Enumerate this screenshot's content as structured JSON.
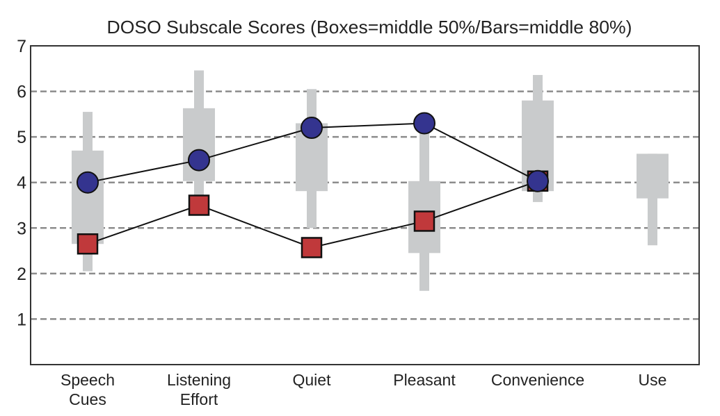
{
  "chart_data": {
    "type": "box-line",
    "title": "DOSO Subscale Scores (Boxes=middle 50%/Bars=middle 80%)",
    "xlabel": "",
    "ylabel": "",
    "ylim": [
      0,
      7
    ],
    "yticks": [
      1,
      2,
      3,
      4,
      5,
      6,
      7
    ],
    "grid": "horizontal dashed",
    "categories": [
      [
        "Speech",
        "Cues"
      ],
      [
        "Listening",
        "Effort"
      ],
      [
        "Quiet"
      ],
      [
        "Pleasant"
      ],
      [
        "Convenience"
      ],
      [
        "Use"
      ]
    ],
    "distributions": [
      {
        "p10": 2.05,
        "p25": 2.65,
        "p75": 4.7,
        "p90": 5.55
      },
      {
        "p10": 3.5,
        "p25": 4.03,
        "p75": 5.63,
        "p90": 6.46
      },
      {
        "p10": 3.0,
        "p25": 3.81,
        "p75": 5.3,
        "p90": 6.05
      },
      {
        "p10": 1.62,
        "p25": 2.45,
        "p75": 4.03,
        "p90": 5.25
      },
      {
        "p10": 3.57,
        "p25": 3.81,
        "p75": 5.8,
        "p90": 6.36
      },
      {
        "p10": 2.62,
        "p25": 3.65,
        "p75": 4.63,
        "p90": 4.63
      }
    ],
    "series": [
      {
        "name": "circles",
        "marker": "circle",
        "color": "#34348f",
        "values": [
          4.0,
          4.49,
          5.2,
          5.3,
          4.03,
          null
        ]
      },
      {
        "name": "squares",
        "marker": "square",
        "color": "#c0393b",
        "values": [
          2.65,
          3.5,
          2.57,
          3.15,
          4.03,
          null
        ]
      }
    ],
    "colors": {
      "box": "#c9cbcc",
      "grid": "#8c8c8c",
      "axis": "#333333"
    }
  }
}
